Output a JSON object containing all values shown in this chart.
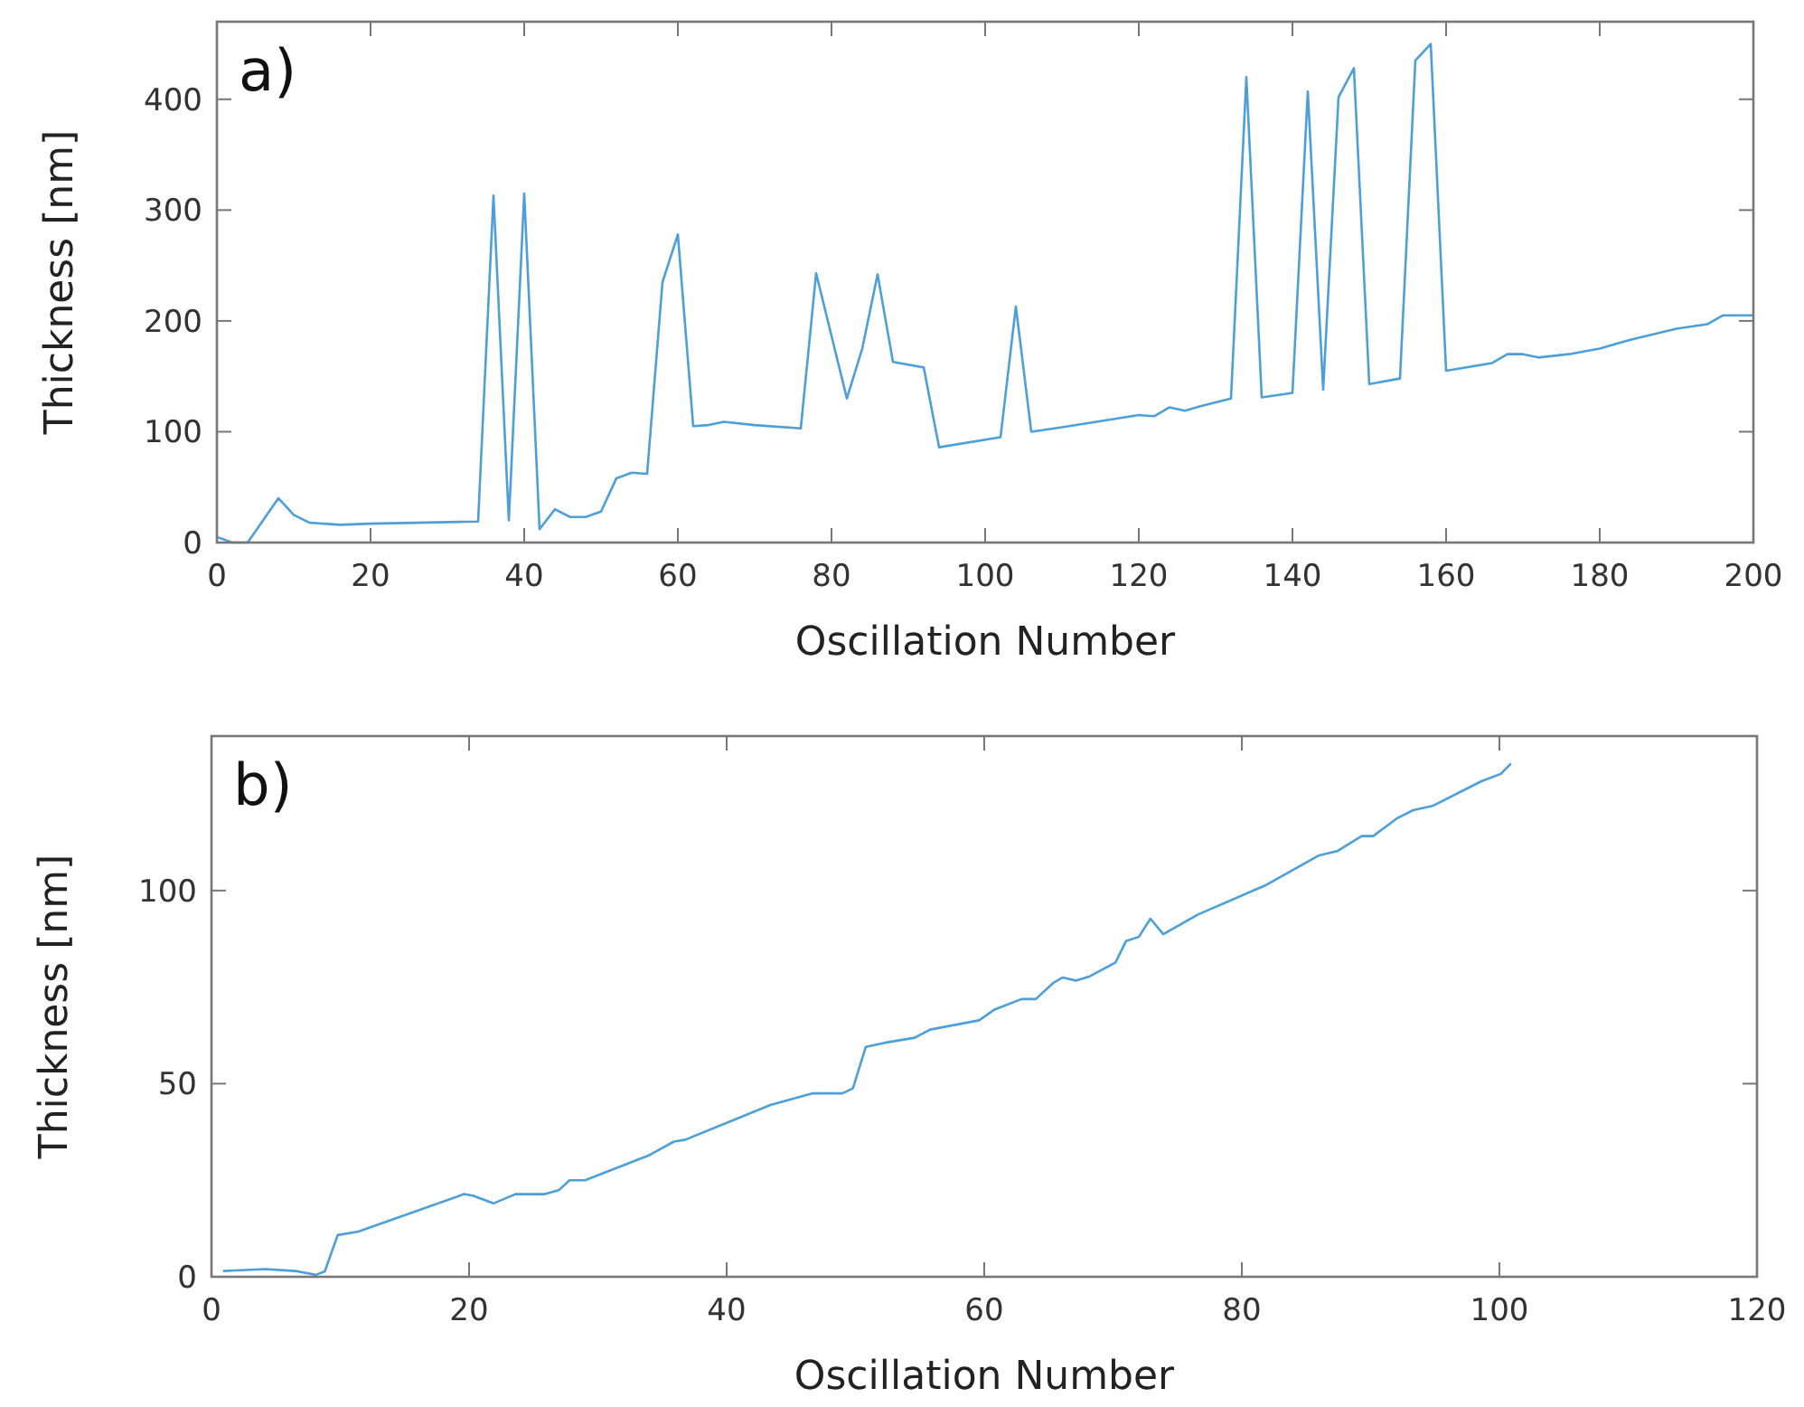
{
  "chart_data": [
    {
      "type": "line",
      "xlabel": "Oscillation Number",
      "ylabel": "Thickness [nm]",
      "annotations": [
        "a)"
      ],
      "color": "#4c9fd9",
      "x": [
        0,
        2,
        4,
        8,
        10,
        12,
        16,
        20,
        34,
        36,
        38,
        40,
        42,
        44,
        46,
        48,
        50,
        52,
        54,
        56,
        58,
        60,
        62,
        64,
        66,
        70,
        76,
        78,
        82,
        84,
        86,
        88,
        92,
        94,
        102,
        104,
        106,
        110,
        120,
        122,
        124,
        126,
        128,
        132,
        134,
        136,
        140,
        142,
        144,
        146,
        148,
        150,
        154,
        156,
        158,
        160,
        166,
        168,
        170,
        172,
        176,
        180,
        184,
        190,
        194,
        196,
        200
      ],
      "values": [
        5,
        0,
        0,
        40,
        25,
        18,
        16,
        17,
        19,
        313,
        20,
        315,
        12,
        30,
        23,
        23,
        28,
        58,
        63,
        62,
        235,
        278,
        105,
        106,
        109,
        106,
        103,
        243,
        130,
        175,
        242,
        163,
        158,
        86,
        95,
        213,
        100,
        104,
        115,
        114,
        122,
        119,
        123,
        130,
        420,
        131,
        135,
        407,
        138,
        402,
        428,
        143,
        148,
        435,
        450,
        155,
        162,
        170,
        170,
        167,
        170,
        175,
        183,
        193,
        197,
        205,
        205
      ],
      "xlim": [
        0,
        200
      ],
      "ylim": [
        0,
        470
      ],
      "xticks": [
        0,
        20,
        40,
        60,
        80,
        100,
        120,
        140,
        160,
        180,
        200
      ],
      "yticks": [
        0,
        100,
        200,
        300,
        400
      ]
    },
    {
      "type": "line",
      "xlabel": "Oscillation Number",
      "ylabel": "Thickness [nm]",
      "annotations": [
        "b)"
      ],
      "color": "#4c9fd9",
      "x": [
        0.9,
        4.2,
        6.5,
        8.1,
        8.8,
        9.8,
        11.4,
        19.6,
        20.3,
        21.9,
        23.6,
        25.9,
        27,
        27.8,
        29,
        34,
        35.9,
        36.8,
        43.4,
        46.7,
        49,
        49.8,
        50.8,
        52.3,
        54.6,
        55.8,
        59.6,
        60.8,
        62.9,
        64,
        65.4,
        66.1,
        67.1,
        68.2,
        70.2,
        71,
        72,
        72.9,
        73.9,
        76.6,
        81.8,
        86,
        87.4,
        89.3,
        90.2,
        92.1,
        93.3,
        94.8,
        98.6,
        100.1,
        100.9
      ],
      "values": [
        1.5,
        2,
        1.5,
        0.5,
        1.4,
        10.8,
        11.7,
        21.4,
        21,
        19,
        21.4,
        21.4,
        22.5,
        25,
        25,
        31.5,
        35,
        35.5,
        44.5,
        47.5,
        47.5,
        48.8,
        59.5,
        60.6,
        61.9,
        64,
        66.4,
        69.2,
        71.9,
        71.9,
        76.2,
        77.5,
        76.7,
        77.8,
        81.4,
        86.9,
        88,
        92.7,
        88.7,
        93.8,
        101.3,
        109.1,
        110.2,
        114.1,
        114.1,
        118.8,
        120.8,
        121.9,
        128.3,
        130.2,
        132.9
      ],
      "xlim": [
        0,
        120
      ],
      "ylim": [
        0,
        140
      ],
      "xticks": [
        0,
        20,
        40,
        60,
        80,
        100,
        120
      ],
      "yticks": [
        0,
        50,
        100
      ]
    }
  ]
}
